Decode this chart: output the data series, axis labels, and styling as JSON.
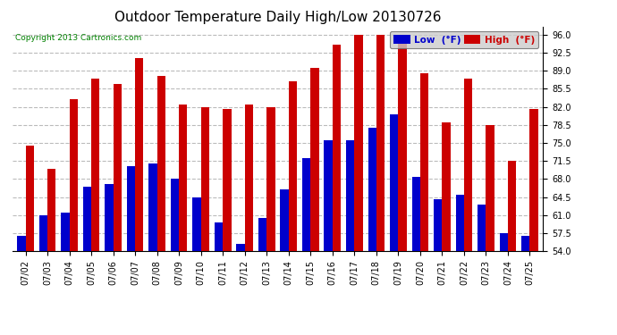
{
  "title": "Outdoor Temperature Daily High/Low 20130726",
  "copyright": "Copyright 2013 Cartronics.com",
  "legend_low_label": "Low  (°F)",
  "legend_high_label": "High  (°F)",
  "dates": [
    "07/02",
    "07/03",
    "07/04",
    "07/05",
    "07/06",
    "07/07",
    "07/08",
    "07/09",
    "07/10",
    "07/11",
    "07/12",
    "07/13",
    "07/14",
    "07/15",
    "07/16",
    "07/17",
    "07/18",
    "07/19",
    "07/20",
    "07/21",
    "07/22",
    "07/23",
    "07/24",
    "07/25"
  ],
  "high": [
    74.5,
    70.0,
    83.5,
    87.5,
    86.5,
    91.5,
    88.0,
    82.5,
    82.0,
    81.5,
    82.5,
    82.0,
    87.0,
    89.5,
    94.0,
    96.0,
    96.0,
    94.5,
    88.5,
    79.0,
    87.5,
    78.5,
    71.5,
    81.5
  ],
  "low": [
    57.0,
    61.0,
    61.5,
    66.5,
    67.0,
    70.5,
    71.0,
    68.0,
    64.5,
    59.5,
    55.5,
    60.5,
    66.0,
    72.0,
    75.5,
    75.5,
    78.0,
    80.5,
    68.5,
    64.0,
    65.0,
    63.0,
    57.5,
    57.0
  ],
  "ylim_min": 54.0,
  "ylim_max": 97.5,
  "yticks": [
    54.0,
    57.5,
    61.0,
    64.5,
    68.0,
    71.5,
    75.0,
    78.5,
    82.0,
    85.5,
    89.0,
    92.5,
    96.0
  ],
  "bar_width": 0.38,
  "low_color": "#0000cc",
  "high_color": "#cc0000",
  "bg_color": "#ffffff",
  "grid_color": "#bbbbbb",
  "title_fontsize": 11,
  "tick_fontsize": 7,
  "legend_low_bg": "#0000cc",
  "legend_high_bg": "#cc0000"
}
